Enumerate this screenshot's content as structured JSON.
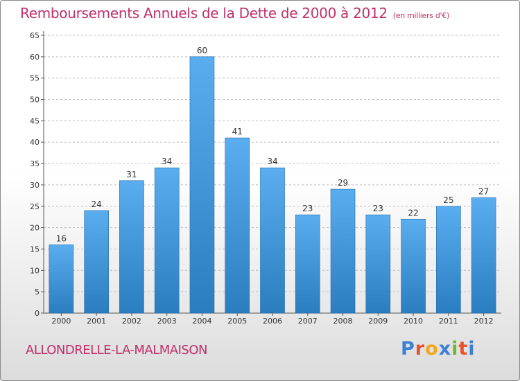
{
  "title": "Remboursements Annuels de la Dette de 2000 à 2012",
  "subtitle": "(en milliers d'€)",
  "commune": "ALLONDRELLE-LA-MALMAISON",
  "brand": {
    "letters": [
      "P",
      "r",
      "o",
      "x",
      "i",
      "t",
      "i"
    ],
    "colors": [
      "#3d7fd6",
      "#e8542a",
      "#f2a81d",
      "#3d7fd6",
      "#6fb82e",
      "#e8542a",
      "#3d7fd6"
    ]
  },
  "colors": {
    "bar_top": "#5aaef0",
    "bar_bottom": "#2a7ec0",
    "title": "#c0306a",
    "grid": "#bdbdbd"
  },
  "chart_data": {
    "type": "bar",
    "title": "Remboursements Annuels de la Dette de 2000 à 2012",
    "subtitle": "(en milliers d'€)",
    "categories": [
      "2000",
      "2001",
      "2002",
      "2003",
      "2004",
      "2005",
      "2006",
      "2007",
      "2008",
      "2009",
      "2010",
      "2011",
      "2012"
    ],
    "values": [
      16,
      24,
      31,
      34,
      60,
      41,
      34,
      23,
      29,
      23,
      22,
      25,
      27
    ],
    "ylim": [
      0,
      65
    ],
    "yticks": [
      0,
      5,
      10,
      15,
      20,
      25,
      30,
      35,
      40,
      45,
      50,
      55,
      60,
      65
    ],
    "grid": true,
    "data_labels": true
  }
}
